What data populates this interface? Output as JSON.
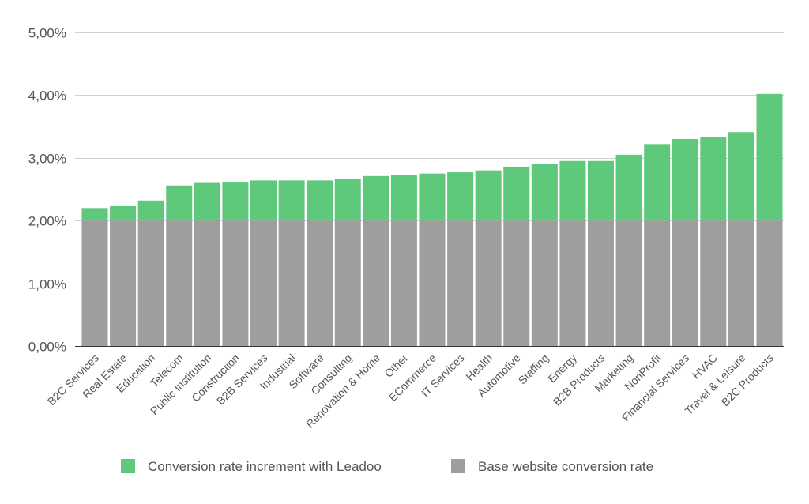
{
  "chart_data": {
    "type": "bar",
    "stacked": true,
    "title": "",
    "xlabel": "",
    "ylabel": "",
    "ylim": [
      0,
      5
    ],
    "yticks": [
      "0,00%",
      "1,00%",
      "2,00%",
      "3,00%",
      "4,00%",
      "5,00%"
    ],
    "grid": true,
    "legend_position": "bottom",
    "categories": [
      "B2C Services",
      "Real Estate",
      "Education",
      "Telecom",
      "Public Institution",
      "Construction",
      "B2B Services",
      "Industrial",
      "Software",
      "Consulting",
      "Renovation & Home",
      "Other",
      "ECommerce",
      "IT Services",
      "Health",
      "Automotive",
      "Staffing",
      "Energy",
      "B2B Products",
      "Marketing",
      "NonProfit",
      "Financial Services",
      "HVAC",
      "Travel & Leisure",
      "B2C Products"
    ],
    "series": [
      {
        "name": "Base website conversion rate",
        "color": "#9e9e9e",
        "values": [
          2,
          2,
          2,
          2,
          2,
          2,
          2,
          2,
          2,
          2,
          2,
          2,
          2,
          2,
          2,
          2,
          2,
          2,
          2,
          2,
          2,
          2,
          2,
          2,
          2
        ]
      },
      {
        "name": "Conversion rate increment with Leadoo",
        "color": "#5ec97a",
        "values": [
          0.2,
          0.23,
          0.32,
          0.56,
          0.6,
          0.62,
          0.64,
          0.64,
          0.64,
          0.66,
          0.71,
          0.73,
          0.75,
          0.77,
          0.8,
          0.86,
          0.9,
          0.95,
          0.95,
          1.05,
          1.22,
          1.3,
          1.33,
          1.41,
          2.02
        ]
      }
    ],
    "legend": [
      "Conversion rate increment with Leadoo",
      "Base website conversion rate"
    ]
  }
}
